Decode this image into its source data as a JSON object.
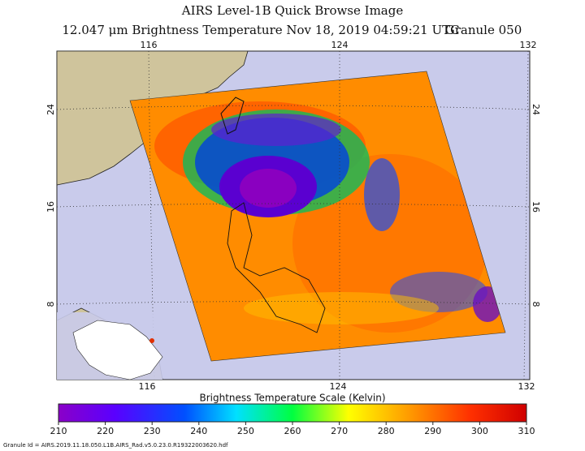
{
  "header": {
    "title": "AIRS Level-1B Quick Browse Image",
    "subtitle": [
      "12.047 μm Brightness Temperature",
      "Nov 18, 2019 04:59:21 UTC",
      "Granule 050"
    ]
  },
  "map": {
    "lon_labels": [
      "116",
      "124",
      "132"
    ],
    "lat_labels": [
      "24",
      "16",
      "8"
    ]
  },
  "colorbar": {
    "title": "Brightness Temperature Scale (Kelvin)",
    "lim": [
      210,
      310
    ],
    "ticks": [
      210,
      220,
      230,
      240,
      250,
      260,
      270,
      280,
      290,
      300,
      310
    ]
  },
  "footer": "Granule Id = AIRS.2019.11.18.050.L1B.AIRS_Rad.v5.0.23.0.R19322003620.hdf"
}
